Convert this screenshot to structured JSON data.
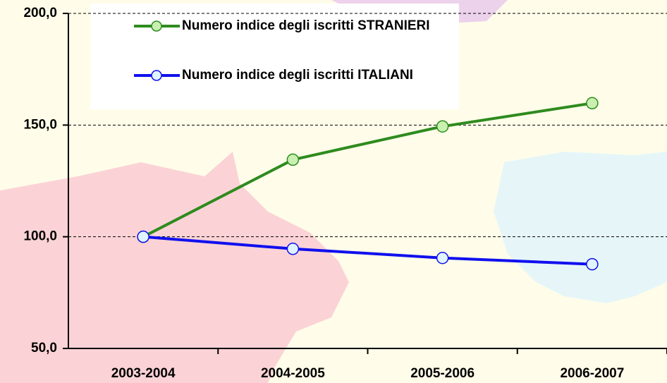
{
  "chart_data": {
    "type": "line",
    "categories": [
      "2003-2004",
      "2004-2005",
      "2005-2006",
      "2006-2007"
    ],
    "series": [
      {
        "name": "Numero indice degli iscritti STRANIERI",
        "color": "#2e8b1e",
        "marker_fill": "#c8f0b0",
        "values": [
          100,
          134.5,
          149.4,
          159.8
        ]
      },
      {
        "name": "Numero indice degli iscritti ITALIANI",
        "color": "#1010ee",
        "marker_fill": "#dff4ff",
        "values": [
          100,
          94.6,
          90.5,
          87.7
        ]
      }
    ],
    "ylim": [
      50,
      200
    ],
    "yticks": [
      {
        "value": 50,
        "label": "50,0"
      },
      {
        "value": 100,
        "label": "100,0"
      },
      {
        "value": 150,
        "label": "150,0"
      },
      {
        "value": 200,
        "label": "200,0"
      }
    ],
    "grid": true,
    "legend": "top-left"
  }
}
